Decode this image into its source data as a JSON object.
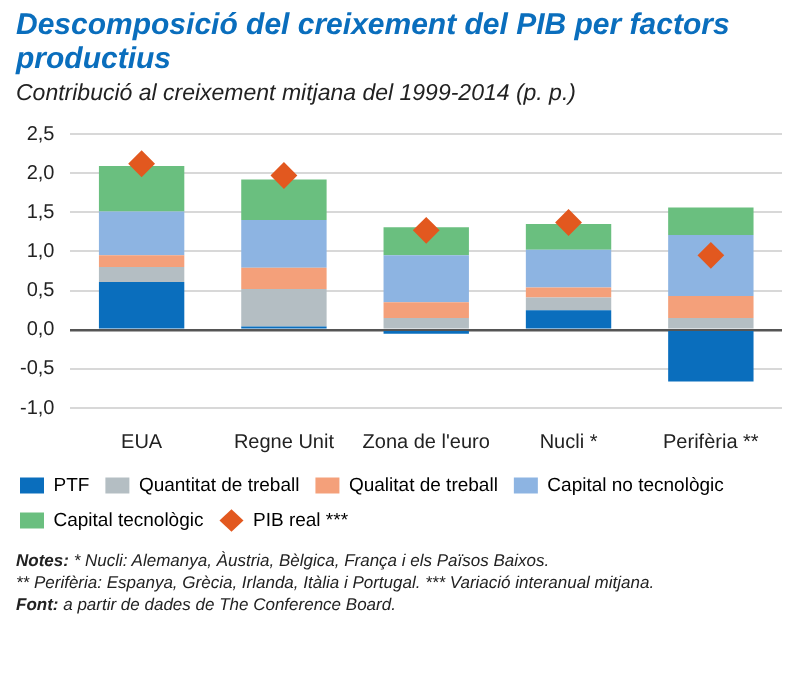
{
  "chart_data": {
    "type": "bar",
    "stacked": true,
    "title": "Descomposició del creixement del PIB per factors productius",
    "subtitle": "Contribució al creixement mitjana del 1999-2014 (p. p.)",
    "categories": [
      "EUA",
      "Regne Unit",
      "Zona de l'euro",
      "Nucli *",
      "Perifèria **"
    ],
    "series": [
      {
        "name": "PTF",
        "color": "#0a6ebd",
        "values": [
          0.61,
          0.04,
          -0.05,
          0.25,
          -0.66
        ]
      },
      {
        "name": "Quantitat de treball",
        "color": "#b4bec3",
        "values": [
          0.19,
          0.48,
          0.15,
          0.16,
          0.15
        ]
      },
      {
        "name": "Qualitat de treball",
        "color": "#f4a07a",
        "values": [
          0.15,
          0.27,
          0.2,
          0.13,
          0.28
        ]
      },
      {
        "name": "Capital no tecnològic",
        "color": "#8db4e2",
        "values": [
          0.56,
          0.61,
          0.6,
          0.48,
          0.78
        ]
      },
      {
        "name": "Capital tecnològic",
        "color": "#6abf7f",
        "values": [
          0.58,
          0.52,
          0.36,
          0.33,
          0.35
        ]
      },
      {
        "name": "PIB real ***",
        "type": "scatter",
        "marker": "diamond",
        "color": "#e2581f",
        "values": [
          2.12,
          1.97,
          1.27,
          1.37,
          0.95
        ]
      }
    ],
    "ylim": [
      -1,
      2.5
    ],
    "yticks": [
      {
        "value": -1,
        "label": "-1,0"
      },
      {
        "value": -0.5,
        "label": "-0,5"
      },
      {
        "value": 0,
        "label": "0,0"
      },
      {
        "value": 0.5,
        "label": "0,5"
      },
      {
        "value": 1,
        "label": "1,0"
      },
      {
        "value": 1.5,
        "label": "1,5"
      },
      {
        "value": 2,
        "label": "2,0"
      },
      {
        "value": 2.5,
        "label": "2,5"
      }
    ],
    "grid": "y",
    "legend": "bottom",
    "annotations": [
      "Notes: * Nucli: Alemanya, Àustria, Bèlgica, França i els Països Baixos.",
      "** Perifèria: Espanya, Grècia, Irlanda, Itàlia i Portugal. *** Variació interanual mitjana.",
      "Font: a partir de dades de The Conference Board."
    ]
  }
}
